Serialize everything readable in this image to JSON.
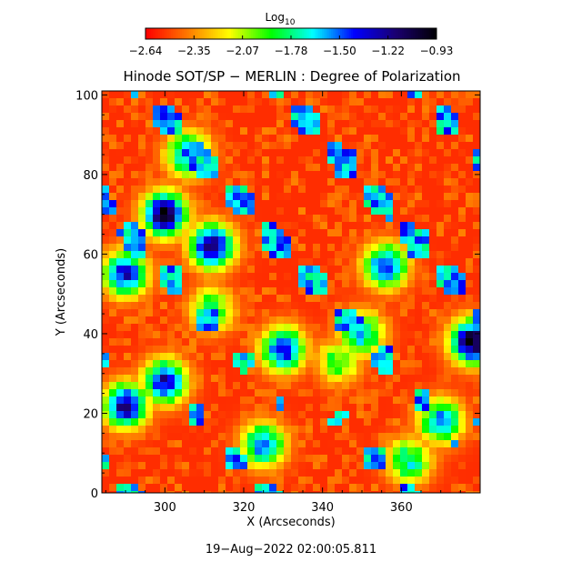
{
  "chart_data": {
    "type": "heatmap",
    "title": "Hinode SOT/SP − MERLIN : Degree of Polarization",
    "xlabel": "X (Arcseconds)",
    "ylabel": "Y (Arcseconds)",
    "xlim": [
      284,
      380
    ],
    "ylim": [
      0,
      101
    ],
    "xticks": [
      "300",
      "320",
      "340",
      "360"
    ],
    "yticks": [
      "0",
      "20",
      "40",
      "60",
      "80",
      "100"
    ],
    "colorbar": {
      "label_base": "Log",
      "label_sub": "10",
      "scale": "log10",
      "range": [
        -2.64,
        -0.93
      ],
      "ticks": [
        "−2.64",
        "−2.35",
        "−2.07",
        "−1.78",
        "−1.50",
        "−1.22",
        "−0.93"
      ],
      "colors": [
        "#ff0000",
        "#ff7a00",
        "#ffff00",
        "#00ff00",
        "#00ffff",
        "#0000ff",
        "#1a0070",
        "#000000"
      ]
    },
    "timestamp": "19−Aug−2022 02:00:05.811",
    "features": [
      {
        "x": 300,
        "y": 70,
        "level": -1.0
      },
      {
        "x": 312,
        "y": 62,
        "level": -1.1
      },
      {
        "x": 290,
        "y": 55,
        "level": -1.3
      },
      {
        "x": 312,
        "y": 46,
        "level": -1.8
      },
      {
        "x": 344,
        "y": 33,
        "level": -1.9
      },
      {
        "x": 350,
        "y": 40,
        "level": -1.6
      },
      {
        "x": 378,
        "y": 38,
        "level": -1.0
      },
      {
        "x": 290,
        "y": 22,
        "level": -1.2
      },
      {
        "x": 300,
        "y": 28,
        "level": -1.3
      },
      {
        "x": 330,
        "y": 36,
        "level": -1.3
      },
      {
        "x": 356,
        "y": 57,
        "level": -1.4
      },
      {
        "x": 370,
        "y": 18,
        "level": -1.5
      },
      {
        "x": 325,
        "y": 12,
        "level": -1.5
      },
      {
        "x": 306,
        "y": 85,
        "level": -1.5
      },
      {
        "x": 362,
        "y": 8,
        "level": -1.7
      }
    ]
  }
}
